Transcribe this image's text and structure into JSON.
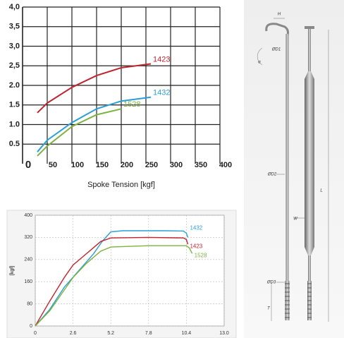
{
  "chart_data": [
    {
      "type": "line",
      "x_label": "Spoke Tension [kgf]",
      "xlim": [
        0,
        400
      ],
      "xticks": [
        0,
        50,
        100,
        150,
        200,
        250,
        300,
        350,
        400
      ],
      "ylim": [
        0,
        4
      ],
      "yticks": [
        0.5,
        {
          "value": 1,
          "label": "1.0"
        },
        1.5,
        {
          "value": 2,
          "label": "2.0"
        },
        {
          "value": 2.5,
          "label": "2,5"
        },
        {
          "value": 3,
          "label": "3,0"
        },
        {
          "value": 3.5,
          "label": "3,5"
        },
        {
          "value": 4,
          "label": "4,0"
        }
      ],
      "grid": true,
      "series": [
        {
          "name": "1423",
          "color": "#c0252f",
          "x": [
            30,
            50,
            100,
            150,
            200,
            260
          ],
          "values": [
            1.3,
            1.55,
            1.95,
            2.25,
            2.45,
            2.55
          ]
        },
        {
          "name": "1432",
          "color": "#2a9fd6",
          "x": [
            30,
            50,
            100,
            150,
            200,
            260
          ],
          "values": [
            0.3,
            0.6,
            1.05,
            1.4,
            1.6,
            1.7
          ]
        },
        {
          "name": "1528",
          "color": "#7fb241",
          "x": [
            30,
            50,
            100,
            150,
            200
          ],
          "values": [
            0.2,
            0.45,
            0.95,
            1.25,
            1.4
          ]
        }
      ]
    },
    {
      "type": "line",
      "y_label": "[kgf]",
      "xlim": [
        0,
        13
      ],
      "xticks": [
        0,
        2.6,
        5.2,
        7.8,
        10.4,
        {
          "value": 13,
          "label": "13.0"
        }
      ],
      "ylim": [
        0,
        400
      ],
      "yticks": [
        0,
        80,
        160,
        240,
        320,
        400
      ],
      "grid": true,
      "series": [
        {
          "name": "1432",
          "color": "#2a9fd6",
          "x": [
            0,
            1,
            2,
            3,
            4,
            4.6,
            5.2,
            6,
            7.8,
            9,
            10.2,
            10.4,
            10.5
          ],
          "values": [
            0,
            60,
            140,
            200,
            260,
            305,
            340,
            344,
            344,
            344,
            343,
            335,
            320
          ]
        },
        {
          "name": "1423",
          "color": "#c0252f",
          "x": [
            0,
            1,
            2,
            2.6,
            3.5,
            4.5,
            5.2,
            7.8,
            10.2,
            10.4,
            10.5
          ],
          "values": [
            0,
            90,
            175,
            220,
            260,
            305,
            318,
            320,
            318,
            312,
            295
          ]
        },
        {
          "name": "1528",
          "color": "#7fb241",
          "x": [
            0,
            1,
            2,
            2.6,
            3.5,
            4.5,
            5.2,
            7.8,
            10.4,
            10.6,
            10.8
          ],
          "values": [
            0,
            55,
            130,
            175,
            225,
            270,
            285,
            290,
            290,
            282,
            262
          ]
        }
      ]
    }
  ],
  "diagram": {
    "labels": [
      "H",
      "ØD1",
      "α",
      "ØD2",
      "L",
      "W",
      "ØD3",
      "T"
    ]
  }
}
